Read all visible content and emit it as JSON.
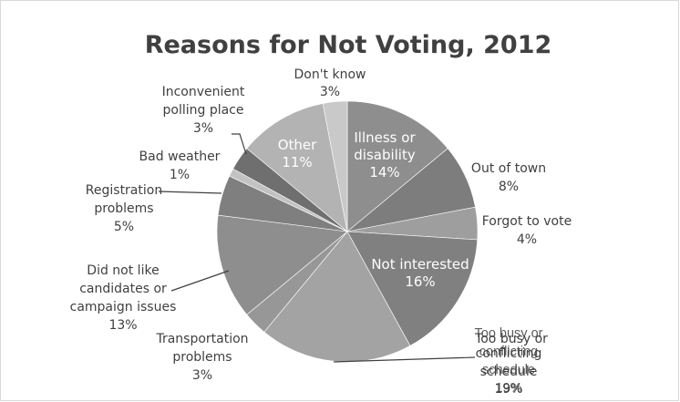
{
  "chart_data": {
    "type": "pie",
    "title": "Reasons for Not Voting, 2012",
    "slices": [
      {
        "name": "Illness or disability",
        "value": 14,
        "value_label": "14%",
        "color": "#8e8e8e"
      },
      {
        "name": "Out of town",
        "value": 8,
        "value_label": "8%",
        "color": "#7d7d7d"
      },
      {
        "name": "Forgot to vote",
        "value": 4,
        "value_label": "4%",
        "color": "#9e9e9e"
      },
      {
        "name": "Not interested",
        "value": 16,
        "value_label": "16%",
        "color": "#808080"
      },
      {
        "name": "Too busy or conflicting schedule",
        "value": 19,
        "value_label": "19%",
        "color": "#a3a3a3"
      },
      {
        "name": "Transportation problems",
        "value": 3,
        "value_label": "3%",
        "color": "#979797"
      },
      {
        "name": "Did not like candidates or campaign issues",
        "value": 13,
        "value_label": "13%",
        "color": "#8e8e8e"
      },
      {
        "name": "Registration problems",
        "value": 5,
        "value_label": "5%",
        "color": "#7f7f7f"
      },
      {
        "name": "Bad weather",
        "value": 1,
        "value_label": "1%",
        "color": "#c2c2c2"
      },
      {
        "name": "Inconvenient polling place",
        "value": 3,
        "value_label": "3%",
        "color": "#6f6f6f"
      },
      {
        "name": "Other",
        "value": 11,
        "value_label": "11%",
        "color": "#b3b3b3"
      },
      {
        "name": "Don't know",
        "value": 3,
        "value_label": "3%",
        "color": "#c9c9c9"
      }
    ],
    "labels": {
      "illness": [
        "Illness or",
        "disability",
        "14%"
      ],
      "out_of_town": [
        "Out of town",
        "8%"
      ],
      "forgot": [
        "Forgot to vote",
        "4%"
      ],
      "not_interested": [
        "Not interested",
        "16%"
      ],
      "too_busy": [
        "Too busy or",
        "conflicting",
        "schedule",
        "19%"
      ],
      "transportation": [
        "Transportation",
        "problems",
        "3%"
      ],
      "did_not_like": [
        "Did not like",
        "candidates or",
        "campaign issues",
        "13%"
      ],
      "registration": [
        "Registration",
        "problems",
        "5%"
      ],
      "bad_weather": [
        "Bad weather",
        "1%"
      ],
      "inconvenient": [
        "Inconvenient",
        "polling place",
        "3%"
      ],
      "other": [
        "Other",
        "11%"
      ],
      "dont_know": [
        "Don't know",
        "3%"
      ]
    },
    "legend": "none"
  }
}
